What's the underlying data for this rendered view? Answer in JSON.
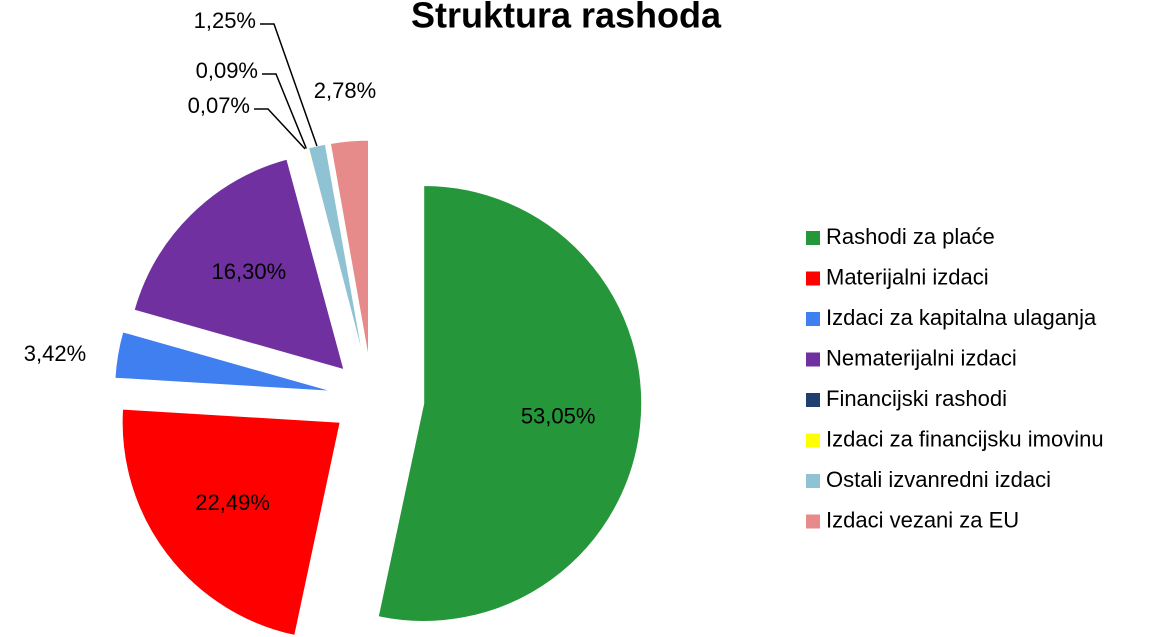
{
  "chart_data": {
    "type": "pie",
    "title": "Struktura rashoda",
    "categories": [
      "Rashodi za plaće",
      "Materijalni izdaci",
      "Izdaci za kapitalna ulaganja",
      "Nematerijalni izdaci",
      "Financijski rashodi",
      "Izdaci za financijsku imovinu",
      "Ostali izvanredni izdaci",
      "Izdaci vezani za EU"
    ],
    "values": [
      53.05,
      22.49,
      3.42,
      16.3,
      0.07,
      0.09,
      1.25,
      2.78
    ],
    "value_labels": [
      "53,05%",
      "22,49%",
      "3,42%",
      "16,30%",
      "0,07%",
      "0,09%",
      "1,25%",
      "2,78%"
    ],
    "colors": [
      "#25963a",
      "#ff0000",
      "#3f7ff0",
      "#7030a0",
      "#1f3f6f",
      "#ffff00",
      "#8fc3d3",
      "#e68a8a"
    ],
    "legend": "right"
  }
}
